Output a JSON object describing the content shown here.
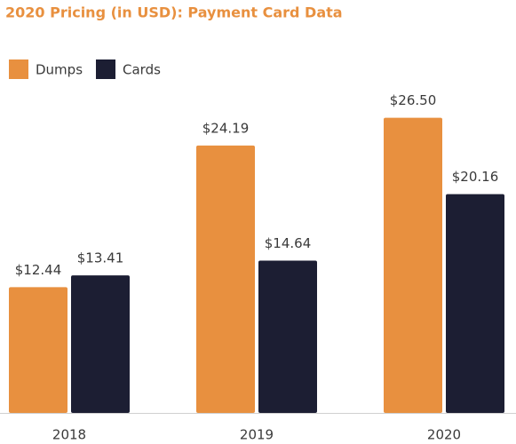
{
  "chart_data": {
    "type": "bar",
    "title": "2020 Pricing (in USD): Payment Card Data",
    "categories": [
      "2018",
      "2019",
      "2020"
    ],
    "series": [
      {
        "name": "Dumps",
        "color": "#e8903f",
        "values": [
          12.44,
          24.19,
          26.5
        ],
        "value_labels": [
          "$12.44",
          "$24.19",
          "$26.50"
        ]
      },
      {
        "name": "Cards",
        "color": "#1c1e33",
        "values": [
          13.41,
          14.64,
          20.16
        ],
        "value_labels": [
          "$13.41",
          "$14.64",
          "$20.16"
        ]
      }
    ],
    "ylim": [
      2,
      27.5
    ],
    "legend": "top-left"
  }
}
